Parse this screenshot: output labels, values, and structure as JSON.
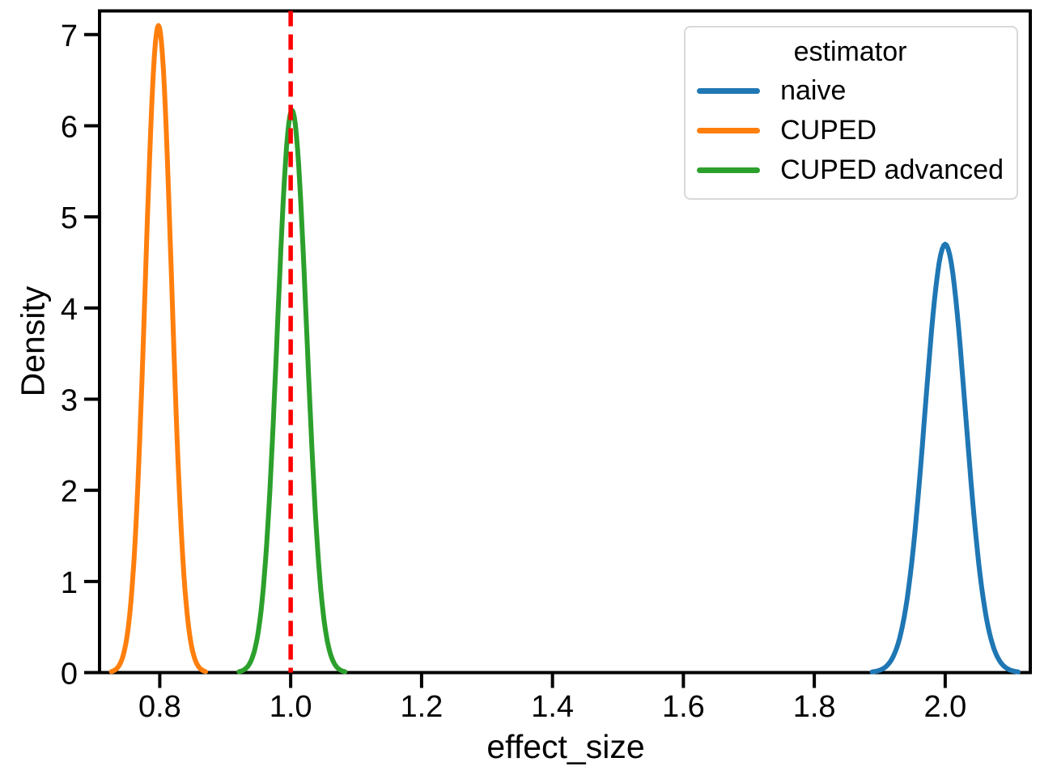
{
  "figure": {
    "background": "#ffffff"
  },
  "chart_data": {
    "type": "line",
    "variant": "kde_density",
    "title": "",
    "xlabel": "effect_size",
    "ylabel": "Density",
    "xlim": [
      0.708,
      2.13
    ],
    "ylim": [
      0,
      7.26
    ],
    "grid": false,
    "axis_color": "#000000",
    "text_color": "#000000",
    "xticks": [
      {
        "value": 0.8,
        "label": "0.8"
      },
      {
        "value": 1.0,
        "label": "1.0"
      },
      {
        "value": 1.2,
        "label": "1.2"
      },
      {
        "value": 1.4,
        "label": "1.4"
      },
      {
        "value": 1.6,
        "label": "1.6"
      },
      {
        "value": 1.8,
        "label": "1.8"
      },
      {
        "value": 2.0,
        "label": "2.0"
      }
    ],
    "yticks": [
      {
        "value": 0,
        "label": "0"
      },
      {
        "value": 1,
        "label": "1"
      },
      {
        "value": 2,
        "label": "2"
      },
      {
        "value": 3,
        "label": "3"
      },
      {
        "value": 4,
        "label": "4"
      },
      {
        "value": 5,
        "label": "5"
      },
      {
        "value": 6,
        "label": "6"
      },
      {
        "value": 7,
        "label": "7"
      }
    ],
    "series": [
      {
        "name": "naive",
        "color": "#1f77b4",
        "curve": "gaussian",
        "peak_x": 2.0,
        "peak_density": 4.7,
        "sigma": 0.031,
        "x_span": [
          1.895,
          2.108
        ]
      },
      {
        "name": "CUPED",
        "color": "#ff7f0e",
        "curve": "gaussian",
        "peak_x": 0.798,
        "peak_density": 7.1,
        "sigma": 0.02,
        "x_span": [
          0.731,
          0.868
        ]
      },
      {
        "name": "CUPED advanced",
        "color": "#2ca02c",
        "curve": "gaussian",
        "peak_x": 1.002,
        "peak_density": 6.17,
        "sigma": 0.0225,
        "x_span": [
          0.925,
          1.082
        ]
      }
    ],
    "reference_line": {
      "x": 1.0,
      "color": "#ff0000",
      "style": "dashed"
    },
    "legend": {
      "title": "estimator",
      "location": "upper right",
      "entries": [
        {
          "label": "naive",
          "color": "#1f77b4"
        },
        {
          "label": "CUPED",
          "color": "#ff7f0e"
        },
        {
          "label": "CUPED advanced",
          "color": "#2ca02c"
        }
      ]
    }
  }
}
